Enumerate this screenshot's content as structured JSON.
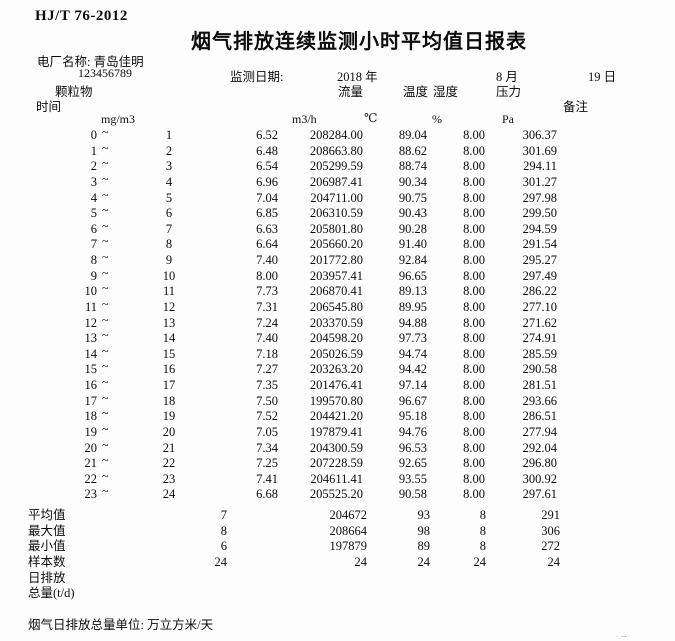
{
  "header": {
    "standard": "HJ/T 76-2012",
    "title": "烟气排放连续监测小时平均值日报表",
    "plant_label": "电厂名称: 青岛佳明",
    "plant_tick": "`",
    "plant_code": "123456789",
    "date_label": "监测日期:",
    "year": "2018 年",
    "month": "8 月",
    "day": "19 日"
  },
  "columns": {
    "time": "时间",
    "pm": "颗粒物",
    "flow": "流量",
    "temp": "温度",
    "humidity": "湿度",
    "pressure": "压力",
    "remark": "备注",
    "units": {
      "pm": "mg/m3",
      "flow": "m3/h",
      "temp": "℃",
      "humidity": "%",
      "pressure": "Pa"
    }
  },
  "table": {
    "tilde": "~",
    "rows": [
      {
        "start": "0",
        "end": "1",
        "pm": "6.52",
        "flow": "208284.00",
        "temp": "89.04",
        "humidity": "8.00",
        "pressure": "306.37"
      },
      {
        "start": "1",
        "end": "2",
        "pm": "6.48",
        "flow": "208663.80",
        "temp": "88.62",
        "humidity": "8.00",
        "pressure": "301.69"
      },
      {
        "start": "2",
        "end": "3",
        "pm": "6.54",
        "flow": "205299.59",
        "temp": "88.74",
        "humidity": "8.00",
        "pressure": "294.11"
      },
      {
        "start": "3",
        "end": "4",
        "pm": "6.96",
        "flow": "206987.41",
        "temp": "90.34",
        "humidity": "8.00",
        "pressure": "301.27"
      },
      {
        "start": "4",
        "end": "5",
        "pm": "7.04",
        "flow": "204711.00",
        "temp": "90.75",
        "humidity": "8.00",
        "pressure": "297.98"
      },
      {
        "start": "5",
        "end": "6",
        "pm": "6.85",
        "flow": "206310.59",
        "temp": "90.43",
        "humidity": "8.00",
        "pressure": "299.50"
      },
      {
        "start": "6",
        "end": "7",
        "pm": "6.63",
        "flow": "205801.80",
        "temp": "90.28",
        "humidity": "8.00",
        "pressure": "294.59"
      },
      {
        "start": "7",
        "end": "8",
        "pm": "6.64",
        "flow": "205660.20",
        "temp": "91.40",
        "humidity": "8.00",
        "pressure": "291.54"
      },
      {
        "start": "8",
        "end": "9",
        "pm": "7.40",
        "flow": "201772.80",
        "temp": "92.84",
        "humidity": "8.00",
        "pressure": "295.27"
      },
      {
        "start": "9",
        "end": "10",
        "pm": "8.00",
        "flow": "203957.41",
        "temp": "96.65",
        "humidity": "8.00",
        "pressure": "297.49"
      },
      {
        "start": "10",
        "end": "11",
        "pm": "7.73",
        "flow": "206870.41",
        "temp": "89.13",
        "humidity": "8.00",
        "pressure": "286.22"
      },
      {
        "start": "11",
        "end": "12",
        "pm": "7.31",
        "flow": "206545.80",
        "temp": "89.95",
        "humidity": "8.00",
        "pressure": "277.10"
      },
      {
        "start": "12",
        "end": "13",
        "pm": "7.24",
        "flow": "203370.59",
        "temp": "94.88",
        "humidity": "8.00",
        "pressure": "271.62"
      },
      {
        "start": "13",
        "end": "14",
        "pm": "7.40",
        "flow": "204598.20",
        "temp": "97.73",
        "humidity": "8.00",
        "pressure": "274.91"
      },
      {
        "start": "14",
        "end": "15",
        "pm": "7.18",
        "flow": "205026.59",
        "temp": "94.74",
        "humidity": "8.00",
        "pressure": "285.59"
      },
      {
        "start": "15",
        "end": "16",
        "pm": "7.27",
        "flow": "203263.20",
        "temp": "94.42",
        "humidity": "8.00",
        "pressure": "290.58"
      },
      {
        "start": "16",
        "end": "17",
        "pm": "7.35",
        "flow": "201476.41",
        "temp": "97.14",
        "humidity": "8.00",
        "pressure": "281.51"
      },
      {
        "start": "17",
        "end": "18",
        "pm": "7.50",
        "flow": "199570.80",
        "temp": "96.67",
        "humidity": "8.00",
        "pressure": "293.66"
      },
      {
        "start": "18",
        "end": "19",
        "pm": "7.52",
        "flow": "204421.20",
        "temp": "95.18",
        "humidity": "8.00",
        "pressure": "286.51"
      },
      {
        "start": "19",
        "end": "20",
        "pm": "7.05",
        "flow": "197879.41",
        "temp": "94.76",
        "humidity": "8.00",
        "pressure": "277.94"
      },
      {
        "start": "20",
        "end": "21",
        "pm": "7.34",
        "flow": "204300.59",
        "temp": "96.53",
        "humidity": "8.00",
        "pressure": "292.04"
      },
      {
        "start": "21",
        "end": "22",
        "pm": "7.25",
        "flow": "207228.59",
        "temp": "92.65",
        "humidity": "8.00",
        "pressure": "296.80"
      },
      {
        "start": "22",
        "end": "23",
        "pm": "7.41",
        "flow": "204611.41",
        "temp": "93.55",
        "humidity": "8.00",
        "pressure": "300.92"
      },
      {
        "start": "23",
        "end": "24",
        "pm": "6.68",
        "flow": "205525.20",
        "temp": "90.58",
        "humidity": "8.00",
        "pressure": "297.61"
      }
    ]
  },
  "summary": [
    {
      "label": "平均值",
      "values": [
        "7",
        "204672",
        "93",
        "8",
        "291"
      ]
    },
    {
      "label": "最大值",
      "values": [
        "8",
        "208664",
        "98",
        "8",
        "306"
      ]
    },
    {
      "label": "最小值",
      "values": [
        "6",
        "197879",
        "89",
        "8",
        "272"
      ]
    },
    {
      "label": "样本数",
      "values": [
        "24",
        "24",
        "24",
        "24",
        "24"
      ]
    },
    {
      "label": "日排放",
      "values": [
        "",
        "",
        "",
        "",
        ""
      ]
    },
    {
      "label": "总量(t/d)",
      "values": [
        "",
        "",
        "",
        "",
        ""
      ]
    }
  ],
  "footer": {
    "unit_note": "烟气日排放总量单位: 万立方米/天",
    "fragment": "· --"
  }
}
